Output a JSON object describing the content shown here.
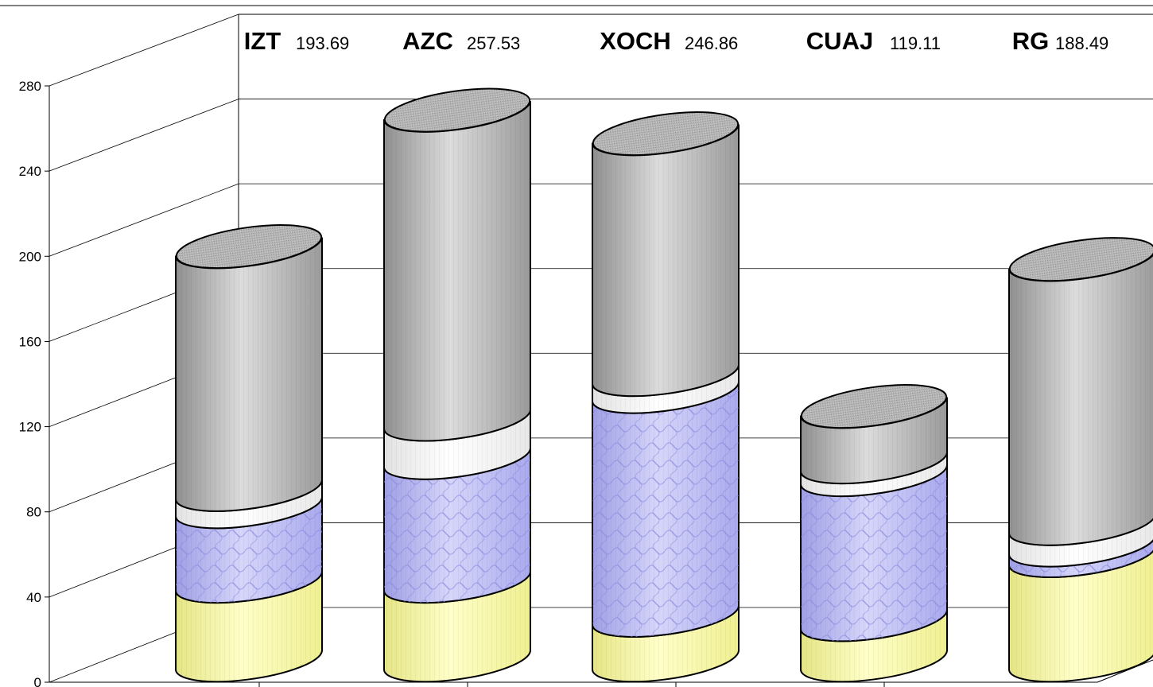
{
  "chart_data": {
    "type": "bar",
    "stacked": true,
    "categories": [
      "IZT",
      "AZC",
      "XOCH",
      "CUAJ",
      "RG"
    ],
    "totals": [
      "193.69",
      "257.53",
      "246.86",
      "119.11",
      "188.49"
    ],
    "series": [
      {
        "values": [
          37,
          37,
          21,
          19,
          49
        ],
        "color": "#f3f39a"
      },
      {
        "values": [
          35,
          58,
          105,
          68,
          5
        ],
        "color": "#b6b6ef"
      },
      {
        "values": [
          8,
          18,
          8,
          6,
          10
        ],
        "color": "#f2f2f2"
      },
      {
        "values": [
          114,
          145,
          113,
          26,
          124
        ],
        "color": "#a8a8a8"
      }
    ],
    "y_ticks": [
      "0",
      "40",
      "80",
      "120",
      "160",
      "200",
      "240",
      "280"
    ],
    "ylim": [
      0,
      280
    ],
    "grid": true,
    "xlabel": "",
    "ylabel": ""
  }
}
